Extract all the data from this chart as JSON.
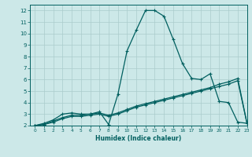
{
  "xlabel": "Humidex (Indice chaleur)",
  "ylabel": "",
  "xlim": [
    -0.5,
    23
  ],
  "ylim": [
    2,
    12.5
  ],
  "yticks": [
    2,
    3,
    4,
    5,
    6,
    7,
    8,
    9,
    10,
    11,
    12
  ],
  "xticks": [
    0,
    1,
    2,
    3,
    4,
    5,
    6,
    7,
    8,
    9,
    10,
    11,
    12,
    13,
    14,
    15,
    16,
    17,
    18,
    19,
    20,
    21,
    22,
    23
  ],
  "bg_color": "#cce8e8",
  "grid_color": "#aacccc",
  "line_color": "#005f5f",
  "line1": {
    "x": [
      0,
      1,
      2,
      3,
      4,
      5,
      6,
      7,
      8,
      9,
      10,
      11,
      12,
      13,
      14,
      15,
      16,
      17,
      18,
      19,
      20,
      21,
      22,
      23
    ],
    "y": [
      2.0,
      2.2,
      2.5,
      3.0,
      3.1,
      3.0,
      3.0,
      3.2,
      2.1,
      4.7,
      8.5,
      10.3,
      12.0,
      12.0,
      11.5,
      9.5,
      7.4,
      6.1,
      6.0,
      6.5,
      4.1,
      4.0,
      2.3,
      2.2
    ]
  },
  "line2": {
    "x": [
      0,
      1,
      2,
      3,
      4,
      5,
      6,
      7,
      8,
      9,
      10,
      11,
      12,
      13,
      14,
      15,
      16,
      17,
      18,
      19,
      20,
      21,
      22,
      23
    ],
    "y": [
      2.0,
      2.1,
      2.4,
      2.7,
      2.9,
      2.9,
      3.0,
      3.1,
      2.9,
      3.1,
      3.4,
      3.7,
      3.9,
      4.1,
      4.3,
      4.5,
      4.7,
      4.9,
      5.1,
      5.3,
      5.6,
      5.8,
      6.1,
      2.2
    ]
  },
  "line3": {
    "x": [
      0,
      1,
      2,
      3,
      4,
      5,
      6,
      7,
      8,
      9,
      10,
      11,
      12,
      13,
      14,
      15,
      16,
      17,
      18,
      19,
      20,
      21,
      22,
      23
    ],
    "y": [
      2.0,
      2.1,
      2.3,
      2.6,
      2.8,
      2.8,
      2.9,
      3.0,
      2.8,
      3.0,
      3.3,
      3.6,
      3.8,
      4.0,
      4.2,
      4.4,
      4.6,
      4.8,
      5.0,
      5.2,
      5.4,
      5.6,
      5.9,
      2.2
    ]
  }
}
